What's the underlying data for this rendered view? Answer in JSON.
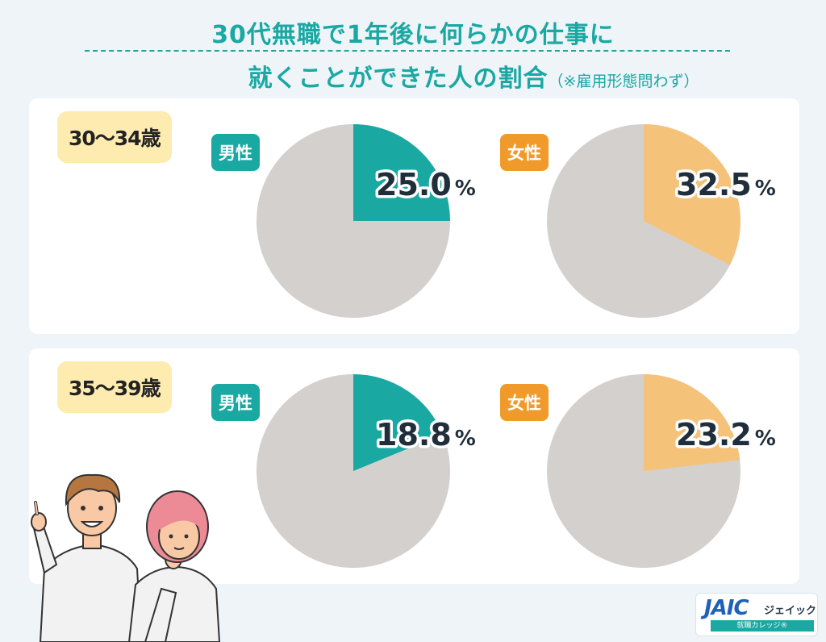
{
  "title": {
    "line1": "30代無職で1年後に何らかの仕事に",
    "line2": "就くことができた人の割合",
    "note": "（※雇用形態問わず）"
  },
  "colors": {
    "male": "#1aa8a3",
    "female": "#f5c27a",
    "rest": "#d3d0ce"
  },
  "chart_data": [
    {
      "type": "pie",
      "group": "30〜34歳",
      "label": "男性",
      "percent_text": "25.0",
      "unit": "%",
      "slices": [
        {
          "label": "男性",
          "value": 25.0
        },
        {
          "label": "",
          "value": 75.0
        }
      ]
    },
    {
      "type": "pie",
      "group": "30〜34歳",
      "label": "女性",
      "percent_text": "32.5",
      "unit": "%",
      "slices": [
        {
          "label": "女性",
          "value": 32.5
        },
        {
          "label": "",
          "value": 67.5
        }
      ]
    },
    {
      "type": "pie",
      "group": "35〜39歳",
      "label": "男性",
      "percent_text": "18.8",
      "unit": "%",
      "slices": [
        {
          "label": "男性",
          "value": 18.8
        },
        {
          "label": "",
          "value": 81.2
        }
      ]
    },
    {
      "type": "pie",
      "group": "35〜39歳",
      "label": "女性",
      "percent_text": "23.2",
      "unit": "%",
      "slices": [
        {
          "label": "女性",
          "value": 23.2
        },
        {
          "label": "",
          "value": 76.8
        }
      ]
    }
  ],
  "logo": {
    "mark": "JAIC",
    "kana": "ジェイック",
    "sub": "就職カレッジ®"
  }
}
